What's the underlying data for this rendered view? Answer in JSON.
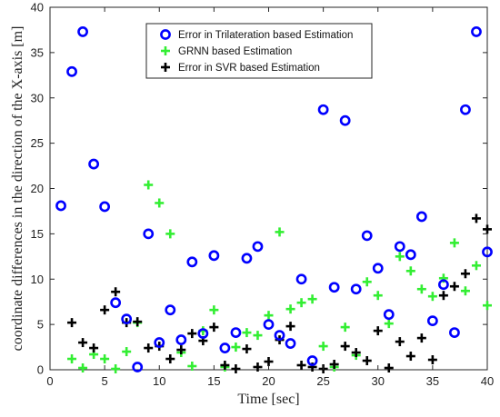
{
  "chart_data": {
    "type": "scatter",
    "xlabel": "Time [sec]",
    "ylabel": "coordinate differences in the direction of the X-axis [m]",
    "xlim": [
      0,
      40
    ],
    "ylim": [
      0,
      40
    ],
    "xticks": [
      "0",
      "5",
      "10",
      "15",
      "20",
      "25",
      "30",
      "35",
      "40"
    ],
    "yticks": [
      "0",
      "5",
      "10",
      "15",
      "20",
      "25",
      "30",
      "35",
      "40"
    ],
    "grid": false,
    "legend_position": "top-center",
    "series": [
      {
        "name": "Error in Trilateration based Estimation",
        "marker": "circle",
        "color": "#0000ff",
        "points": [
          [
            1,
            18.1
          ],
          [
            2,
            32.9
          ],
          [
            3,
            37.3
          ],
          [
            4,
            22.7
          ],
          [
            5,
            18.0
          ],
          [
            6,
            7.4
          ],
          [
            7,
            5.6
          ],
          [
            8,
            0.3
          ],
          [
            9,
            15.0
          ],
          [
            10,
            3.0
          ],
          [
            11,
            6.6
          ],
          [
            12,
            3.3
          ],
          [
            13,
            11.9
          ],
          [
            14,
            4.0
          ],
          [
            15,
            12.6
          ],
          [
            16,
            2.4
          ],
          [
            17,
            4.1
          ],
          [
            18,
            12.3
          ],
          [
            19,
            13.6
          ],
          [
            20,
            5.0
          ],
          [
            21,
            3.8
          ],
          [
            22,
            2.9
          ],
          [
            23,
            10.0
          ],
          [
            24,
            1.0
          ],
          [
            25,
            28.7
          ],
          [
            26,
            9.1
          ],
          [
            27,
            27.5
          ],
          [
            28,
            8.9
          ],
          [
            29,
            14.8
          ],
          [
            30,
            11.2
          ],
          [
            31,
            6.1
          ],
          [
            32,
            13.6
          ],
          [
            33,
            12.7
          ],
          [
            34,
            16.9
          ],
          [
            35,
            5.4
          ],
          [
            36,
            9.4
          ],
          [
            37,
            4.1
          ],
          [
            38,
            28.7
          ],
          [
            39,
            37.3
          ],
          [
            40,
            13.0
          ]
        ]
      },
      {
        "name": "GRNN based Estimation",
        "marker": "plus",
        "color": "#33ee33",
        "points": [
          [
            2,
            1.2
          ],
          [
            3,
            0.2
          ],
          [
            4,
            1.7
          ],
          [
            5,
            1.2
          ],
          [
            6,
            0.1
          ],
          [
            7,
            2.0
          ],
          [
            8,
            5.2
          ],
          [
            9,
            20.4
          ],
          [
            10,
            18.4
          ],
          [
            11,
            15.0
          ],
          [
            12,
            1.9
          ],
          [
            13,
            0.4
          ],
          [
            14,
            4.3
          ],
          [
            15,
            6.6
          ],
          [
            16,
            0.3
          ],
          [
            17,
            2.5
          ],
          [
            18,
            4.1
          ],
          [
            19,
            3.8
          ],
          [
            20,
            6.0
          ],
          [
            21,
            15.2
          ],
          [
            22,
            6.7
          ],
          [
            23,
            7.4
          ],
          [
            24,
            7.8
          ],
          [
            25,
            2.6
          ],
          [
            26,
            0.3
          ],
          [
            27,
            4.7
          ],
          [
            28,
            1.6
          ],
          [
            29,
            9.7
          ],
          [
            30,
            8.2
          ],
          [
            31,
            5.1
          ],
          [
            32,
            12.5
          ],
          [
            33,
            10.9
          ],
          [
            34,
            8.9
          ],
          [
            35,
            8.1
          ],
          [
            36,
            10.1
          ],
          [
            37,
            14.0
          ],
          [
            38,
            8.7
          ],
          [
            39,
            11.5
          ],
          [
            40,
            7.1
          ]
        ]
      },
      {
        "name": "Error in SVR based Estimation",
        "marker": "plus",
        "color": "#000000",
        "points": [
          [
            2,
            5.2
          ],
          [
            3,
            3.0
          ],
          [
            4,
            2.4
          ],
          [
            5,
            6.6
          ],
          [
            6,
            8.6
          ],
          [
            7,
            5.2
          ],
          [
            8,
            5.3
          ],
          [
            9,
            2.4
          ],
          [
            10,
            2.6
          ],
          [
            11,
            1.2
          ],
          [
            12,
            2.2
          ],
          [
            13,
            4.0
          ],
          [
            14,
            3.2
          ],
          [
            15,
            4.7
          ],
          [
            16,
            0.5
          ],
          [
            17,
            0.1
          ],
          [
            18,
            2.3
          ],
          [
            19,
            0.3
          ],
          [
            20,
            0.9
          ],
          [
            21,
            3.3
          ],
          [
            22,
            4.8
          ],
          [
            23,
            0.5
          ],
          [
            24,
            0.3
          ],
          [
            25,
            0.1
          ],
          [
            26,
            0.6
          ],
          [
            27,
            2.6
          ],
          [
            28,
            1.9
          ],
          [
            29,
            1.0
          ],
          [
            30,
            4.3
          ],
          [
            31,
            0.2
          ],
          [
            32,
            3.1
          ],
          [
            33,
            1.5
          ],
          [
            34,
            3.5
          ],
          [
            35,
            1.1
          ],
          [
            36,
            8.2
          ],
          [
            37,
            9.2
          ],
          [
            38,
            10.6
          ],
          [
            39,
            16.7
          ],
          [
            40,
            15.5
          ]
        ]
      }
    ]
  }
}
